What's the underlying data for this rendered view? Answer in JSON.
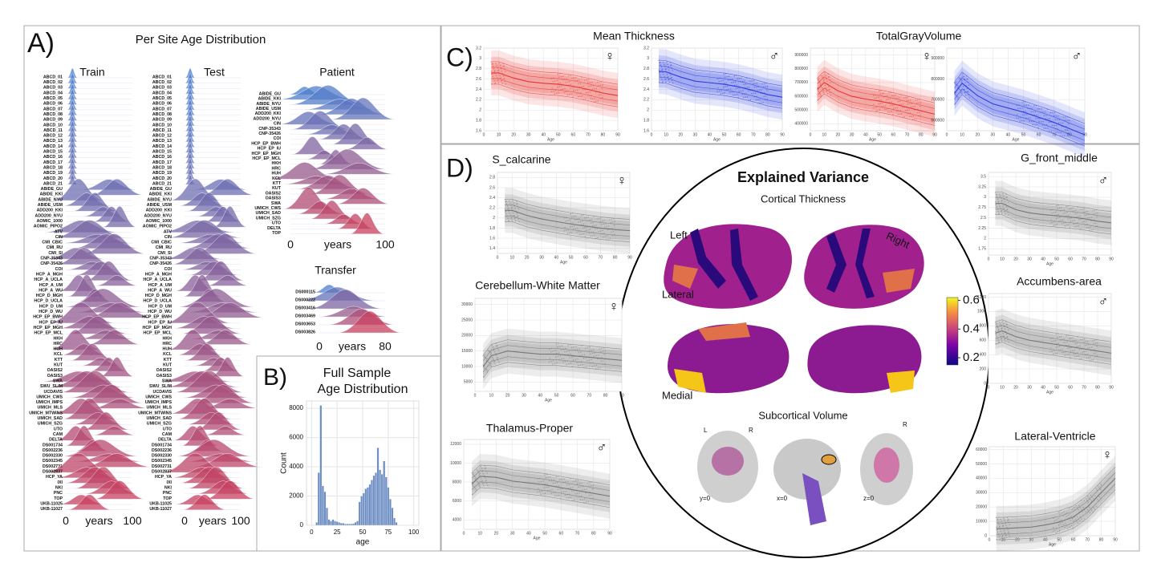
{
  "panel_a": {
    "label": "A)",
    "title": "Per Site Age Distribution",
    "train": {
      "title": "Train",
      "xticks": [
        0,
        100
      ],
      "xlabel": "years",
      "sites": [
        "ABCD_01",
        "ABCD_02",
        "ABCD_03",
        "ABCD_04",
        "ABCD_05",
        "ABCD_06",
        "ABCD_07",
        "ABCD_08",
        "ABCD_09",
        "ABCD_10",
        "ABCD_11",
        "ABCD_12",
        "ABCD_13",
        "ABCD_14",
        "ABCD_15",
        "ABCD_16",
        "ABCD_17",
        "ABCD_18",
        "ABCD_19",
        "ABCD_20",
        "ABCD_21",
        "ABIDE_GU",
        "ABIDE_KKI",
        "ABIDE_NYU",
        "ABIDE_USM",
        "ADD200_KKI",
        "ADD200_NYU",
        "AOMIC_1000",
        "AOMIC_PIPO2",
        "ATV",
        "CIN",
        "CMI_CBIC",
        "CMI_RU",
        "CMI_SI",
        "CNP-35343",
        "CNP-35426",
        "COI",
        "HCP_A_MGH",
        "HCP_A_UCLA",
        "HCP_A_UM",
        "HCP_A_WU",
        "HCP_D_MGH",
        "HCP_D_UCLA",
        "HCP_D_UM",
        "HCP_D_WU",
        "HCP_EP_BWH",
        "HCP_EP_IU",
        "HCP_EP_MGH",
        "HCP_EP_MCL",
        "HKH",
        "HRC",
        "HUH",
        "KCL",
        "KTT",
        "KUT",
        "OASIS2",
        "OASIS3",
        "SWA",
        "SWU_SLIM",
        "UCDAVIS",
        "UMICH_CWS",
        "UMICH_IMPS",
        "UMICH_MLS",
        "UMICH_MTWINS",
        "UMICH_SAD",
        "UMICH_SZG",
        "UTO",
        "CAM",
        "DELTA",
        "DS001734",
        "DS002236",
        "DS002330",
        "DS002345",
        "DS002731",
        "DS002837",
        "HCP_YA",
        "IXI",
        "NKI",
        "PNC",
        "TOP",
        "UKB-11025",
        "UKB-11027"
      ]
    },
    "test": {
      "title": "Test",
      "xticks": [
        0,
        100
      ],
      "xlabel": "years",
      "sites": [
        "ABCD_01",
        "ABCD_02",
        "ABCD_03",
        "ABCD_04",
        "ABCD_05",
        "ABCD_06",
        "ABCD_07",
        "ABCD_08",
        "ABCD_09",
        "ABCD_10",
        "ABCD_11",
        "ABCD_12",
        "ABCD_13",
        "ABCD_14",
        "ABCD_15",
        "ABCD_16",
        "ABCD_17",
        "ABCD_18",
        "ABCD_19",
        "ABCD_20",
        "ABCD_21",
        "ABIDE_GU",
        "ABIDE_KKI",
        "ABIDE_NYU",
        "ABIDE_USM",
        "ADD200_KKI",
        "ADD200_NYU",
        "AOMIC_1000",
        "AOMIC_PIPO2",
        "ATV",
        "CIN",
        "CMI_CBIC",
        "CMI_RU",
        "CMI_SI",
        "CNP-35343",
        "CNP-35426",
        "COI",
        "HCP_A_MGH",
        "HCP_A_UCLA",
        "HCP_A_UM",
        "HCP_A_WU",
        "HCP_D_MGH",
        "HCP_D_UCLA",
        "HCP_D_UM",
        "HCP_D_WU",
        "HCP_EP_BWH",
        "HCP_EP_IU",
        "HCP_EP_MGH",
        "HCP_EP_MCL",
        "HKH",
        "HRC",
        "HUH",
        "KCL",
        "KTT",
        "KUT",
        "OASIS2",
        "OASIS3",
        "SWA",
        "SWU_SLIM",
        "UCDAVIS",
        "UMICH_CWS",
        "UMICH_IMPS",
        "UMICH_MLS",
        "UMICH_MTWINS",
        "UMICH_SAD",
        "UMICH_SZG",
        "UTO",
        "CAM",
        "DELTA",
        "DS001734",
        "DS002236",
        "DS002330",
        "DS002345",
        "DS002731",
        "DS002837",
        "HCP_YA",
        "IXI",
        "NKI",
        "PNC",
        "TOP",
        "UKB-11025",
        "UKB-11027"
      ]
    },
    "patient": {
      "title": "Patient",
      "xticks": [
        0,
        100
      ],
      "xlabel": "years",
      "sites": [
        "ABIDE_GU",
        "ABIDE_KKI",
        "ABIDE_NYU",
        "ABIDE_USM",
        "ADD200_KKI",
        "ADD200_NYU",
        "CIN",
        "CNP-35343",
        "CNP-35426",
        "COI",
        "HCP_EP_BWH",
        "HCP_EP_IU",
        "HCP_EP_MGH",
        "HCP_EP_MCL",
        "HKH",
        "HRC",
        "HUH",
        "KCL",
        "KTT",
        "KUT",
        "OASIS2",
        "OASIS3",
        "SWA",
        "UMICH_CWS",
        "UMICH_SAD",
        "UMICH_SZG",
        "UTO",
        "DELTA",
        "TOP"
      ]
    },
    "transfer": {
      "title": "Transfer",
      "xticks": [
        0,
        80
      ],
      "xlabel": "years",
      "sites": [
        "DS000115",
        "DS000222",
        "DS003416",
        "DS003469",
        "DS003653",
        "DS003826"
      ]
    }
  },
  "panel_b": {
    "label": "B)",
    "title": [
      "Full Sample",
      "Age Distribution"
    ],
    "histogram": {
      "type": "histogram",
      "color": "#6f8fc4",
      "xlabel": "age",
      "ylabel": "Count",
      "bins": [
        4,
        6,
        8,
        10,
        12,
        14,
        16,
        18,
        20,
        22,
        24,
        26,
        28,
        30,
        32,
        34,
        36,
        38,
        40,
        42,
        44,
        46,
        48,
        50,
        52,
        54,
        56,
        58,
        60,
        62,
        64,
        66,
        68,
        70,
        72,
        74,
        76,
        78,
        80,
        82,
        84
      ],
      "counts": [
        200,
        3600,
        8200,
        2700,
        2300,
        1200,
        400,
        300,
        400,
        300,
        250,
        200,
        150,
        150,
        100,
        100,
        100,
        100,
        120,
        200,
        300,
        1600,
        2000,
        2200,
        2500,
        2600,
        2800,
        3100,
        3400,
        3600,
        5300,
        3800,
        3500,
        4400,
        3300,
        2600,
        1800,
        1200,
        500,
        200
      ],
      "xlim": [
        -5,
        105
      ],
      "ylim": [
        0,
        8500
      ],
      "xticks": [
        0,
        25,
        50,
        75,
        100
      ],
      "yticks": [
        0,
        2000,
        4000,
        6000,
        8000
      ]
    }
  },
  "panel_c": {
    "label": "C)",
    "titles": [
      "Mean Thickness",
      "TotalGrayVolume"
    ],
    "plots": [
      {
        "sex": "♀",
        "color": "#e8352d",
        "xlabel": "Age",
        "x": [
          5,
          10,
          20,
          30,
          40,
          50,
          60,
          70,
          80,
          90
        ],
        "median": [
          2.72,
          2.72,
          2.62,
          2.55,
          2.52,
          2.5,
          2.46,
          2.4,
          2.33,
          2.28
        ],
        "xlim": [
          0,
          90
        ],
        "ylim": [
          1.6,
          3.2
        ],
        "xticks": [
          0,
          10,
          20,
          30,
          40,
          50,
          60,
          70,
          80,
          90
        ],
        "yticks": [
          1.6,
          1.8,
          2.0,
          2.2,
          2.4,
          2.6,
          2.8,
          3.0,
          3.2
        ]
      },
      {
        "sex": "♂",
        "color": "#2b3ee0",
        "xlabel": "Age",
        "x": [
          5,
          10,
          20,
          30,
          40,
          50,
          60,
          70,
          80,
          90
        ],
        "median": [
          2.75,
          2.74,
          2.64,
          2.56,
          2.53,
          2.5,
          2.45,
          2.38,
          2.3,
          2.25
        ],
        "xlim": [
          0,
          90
        ],
        "ylim": [
          1.6,
          3.2
        ],
        "xticks": [
          0,
          10,
          20,
          30,
          40,
          50,
          60,
          70,
          80,
          90
        ],
        "yticks": [
          1.6,
          1.8,
          2.0,
          2.2,
          2.4,
          2.6,
          2.8,
          3.0,
          3.2
        ]
      },
      {
        "sex": "♀",
        "color": "#e8352d",
        "xlabel": "Age",
        "x": [
          5,
          10,
          20,
          30,
          40,
          50,
          60,
          70,
          80,
          90
        ],
        "median": [
          650000,
          700000,
          640000,
          600000,
          580000,
          565000,
          545000,
          520000,
          495000,
          470000
        ],
        "xlim": [
          0,
          90
        ],
        "ylim": [
          350000,
          950000
        ],
        "xticks": [
          0,
          10,
          20,
          30,
          40,
          50,
          60,
          70,
          80,
          90
        ],
        "yticks": [
          400000,
          500000,
          600000,
          700000,
          800000,
          900000
        ]
      },
      {
        "sex": "♂",
        "color": "#2b3ee0",
        "xlabel": "Age",
        "x": [
          5,
          10,
          20,
          30,
          40,
          50,
          60,
          70,
          80,
          90
        ],
        "median": [
          730000,
          780000,
          720000,
          680000,
          660000,
          640000,
          615000,
          590000,
          560000,
          530000
        ],
        "xlim": [
          0,
          90
        ],
        "ylim": [
          550000,
          950000
        ],
        "xticks": [
          0,
          10,
          20,
          30,
          40,
          50,
          60,
          70,
          80,
          90
        ],
        "yticks": [
          600000,
          700000,
          800000,
          900000
        ]
      }
    ]
  },
  "panel_d": {
    "label": "D)",
    "plots": [
      {
        "title": "S_calcarine",
        "sex": "♀",
        "color": "#777777",
        "xlabel": "Age",
        "x": [
          5,
          10,
          20,
          30,
          40,
          50,
          60,
          70,
          80,
          90
        ],
        "median": [
          2.15,
          2.15,
          2.05,
          1.98,
          1.93,
          1.88,
          1.84,
          1.8,
          1.77,
          1.75
        ],
        "xlim": [
          0,
          90
        ],
        "ylim": [
          1.3,
          2.9
        ],
        "xticks": [
          0,
          10,
          20,
          30,
          40,
          50,
          60,
          70,
          80,
          90
        ],
        "yticks": [
          1.4,
          1.6,
          1.8,
          2.0,
          2.2,
          2.4,
          2.6,
          2.8
        ]
      },
      {
        "title": "Cerebellum-White Matter",
        "sex": "♀",
        "color": "#777777",
        "xlabel": "Age",
        "x": [
          5,
          10,
          20,
          30,
          40,
          50,
          60,
          70,
          80,
          90
        ],
        "median": [
          10000,
          13500,
          15000,
          14500,
          14000,
          14000,
          13500,
          13000,
          12500,
          12000
        ],
        "xlim": [
          0,
          90
        ],
        "ylim": [
          2000,
          32000
        ],
        "xticks": [
          0,
          10,
          20,
          30,
          40,
          50,
          60,
          70,
          80,
          90
        ],
        "yticks": [
          5000,
          10000,
          15000,
          20000,
          25000,
          30000
        ]
      },
      {
        "title": "Thalamus-Proper",
        "sex": "♂",
        "color": "#777777",
        "xlabel": "Age",
        "x": [
          5,
          10,
          20,
          30,
          40,
          50,
          60,
          70,
          80,
          90
        ],
        "median": [
          7800,
          8600,
          8500,
          8100,
          7900,
          7700,
          7400,
          7100,
          6800,
          6500
        ],
        "xlim": [
          0,
          90
        ],
        "ylim": [
          3000,
          12500
        ],
        "xticks": [
          0,
          10,
          20,
          30,
          40,
          50,
          60,
          70,
          80,
          90
        ],
        "yticks": [
          4000,
          6000,
          8000,
          10000,
          12000
        ]
      },
      {
        "title": "G_front_middle",
        "sex": "♂",
        "color": "#777777",
        "xlabel": "Age",
        "x": [
          5,
          10,
          20,
          30,
          40,
          50,
          60,
          70,
          80,
          90
        ],
        "median": [
          2.85,
          2.85,
          2.7,
          2.62,
          2.58,
          2.55,
          2.52,
          2.48,
          2.42,
          2.38
        ],
        "xlim": [
          0,
          90
        ],
        "ylim": [
          1.6,
          3.6
        ],
        "xticks": [
          0,
          10,
          20,
          30,
          40,
          50,
          60,
          70,
          80,
          90
        ],
        "yticks": [
          1.75,
          2.0,
          2.25,
          2.5,
          2.75,
          3.0,
          3.25,
          3.5
        ]
      },
      {
        "title": "Accumbens-area",
        "sex": "♂",
        "color": "#777777",
        "xlabel": "Age",
        "x": [
          5,
          10,
          20,
          30,
          40,
          50,
          60,
          70,
          80,
          90
        ],
        "median": [
          700,
          730,
          650,
          600,
          570,
          540,
          510,
          480,
          450,
          420
        ],
        "xlim": [
          0,
          90
        ],
        "ylim": [
          0,
          1250
        ],
        "xticks": [
          0,
          10,
          20,
          30,
          40,
          50,
          60,
          70,
          80,
          90
        ],
        "yticks": [
          0,
          200,
          400,
          600,
          800,
          1000,
          1200
        ]
      },
      {
        "title": "Lateral-Ventricle",
        "sex": "♀",
        "color": "#777777",
        "xlabel": "Age",
        "x": [
          5,
          10,
          20,
          30,
          40,
          50,
          60,
          70,
          80,
          90
        ],
        "median": [
          5000,
          5000,
          5500,
          6000,
          7500,
          9500,
          13000,
          20000,
          30000,
          40000
        ],
        "xlim": [
          0,
          90
        ],
        "ylim": [
          0,
          62000
        ],
        "xticks": [
          0,
          10,
          20,
          30,
          40,
          50,
          60,
          70,
          80,
          90
        ],
        "yticks": [
          0,
          10000,
          20000,
          30000,
          40000,
          50000,
          60000
        ]
      }
    ],
    "center": {
      "title": "Explained Variance",
      "cortical": "Cortical Thickness",
      "left": "Left",
      "right": "Right",
      "lateral": "Lateral",
      "medial": "Medial",
      "colorbar": {
        "lim": [
          0.15,
          0.62
        ],
        "ticks": [
          0.2,
          0.4,
          0.6
        ]
      },
      "subcortical": "Subcortical Volume",
      "l": "L",
      "r": "R",
      "r2": "R",
      "y0": "y=0",
      "x0": "x=0",
      "z0": "z=0"
    }
  }
}
